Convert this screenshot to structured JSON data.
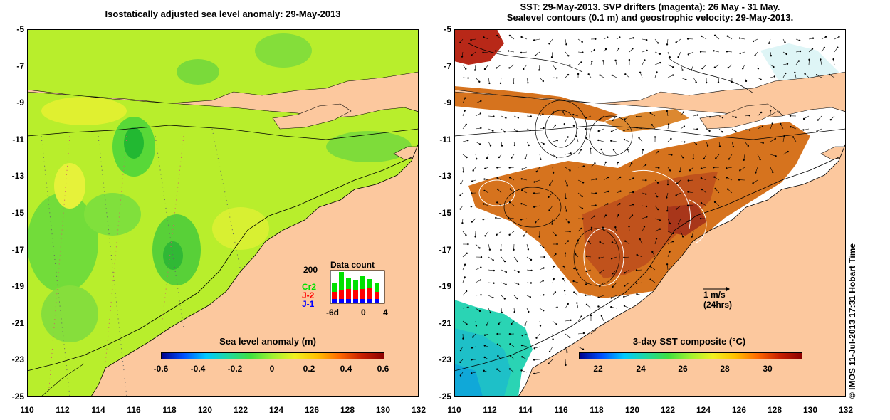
{
  "left_panel": {
    "title": "Isostatically adjusted sea level anomaly: 29-May-2013",
    "colorbar": {
      "title": "Sea level anomaly (m)",
      "ticks": [
        "-0.6",
        "-0.4",
        "-0.2",
        "0",
        "0.2",
        "0.4",
        "0.6"
      ],
      "range": [
        -0.6,
        0.6
      ]
    },
    "data_count": {
      "title": "Data count",
      "ymax_label": "200",
      "x_labels": [
        "-6d",
        "0",
        "4"
      ],
      "missions": [
        {
          "label": "Cr2",
          "color": "#00e000"
        },
        {
          "label": "J-2",
          "color": "#ff0000"
        },
        {
          "label": "J-1",
          "color": "#0000ff"
        }
      ]
    }
  },
  "right_panel": {
    "title_line1": "SST: 29-May-2013. SVP drifters (magenta): 26 May - 31 May.",
    "title_line2": "Sealevel contours (0.1 m) and geostrophic velocity: 29-May-2013.",
    "colorbar": {
      "title": "3-day SST composite (°C)",
      "ticks": [
        "22",
        "24",
        "26",
        "28",
        "30"
      ],
      "range": [
        21,
        31.5
      ]
    },
    "velocity_key": {
      "label": "1 m/s",
      "sublabel": "(24hrs)"
    }
  },
  "axes": {
    "lat_ticks": [
      "-5",
      "-7",
      "-9",
      "-11",
      "-13",
      "-15",
      "-17",
      "-19",
      "-21",
      "-23",
      "-25"
    ],
    "lon_ticks": [
      "110",
      "112",
      "114",
      "116",
      "118",
      "120",
      "122",
      "124",
      "126",
      "128",
      "130",
      "132"
    ],
    "lat_range": [
      -25,
      -5
    ],
    "lon_range": [
      110,
      132
    ]
  },
  "credit": "© IMOS 11-Jul-2013 17:31 Hobart Time",
  "colors": {
    "land": "#fcc89e",
    "ocean_green": "#b8ee2c",
    "sst_hot": "#c8501a",
    "no_data": "#ffffff"
  }
}
